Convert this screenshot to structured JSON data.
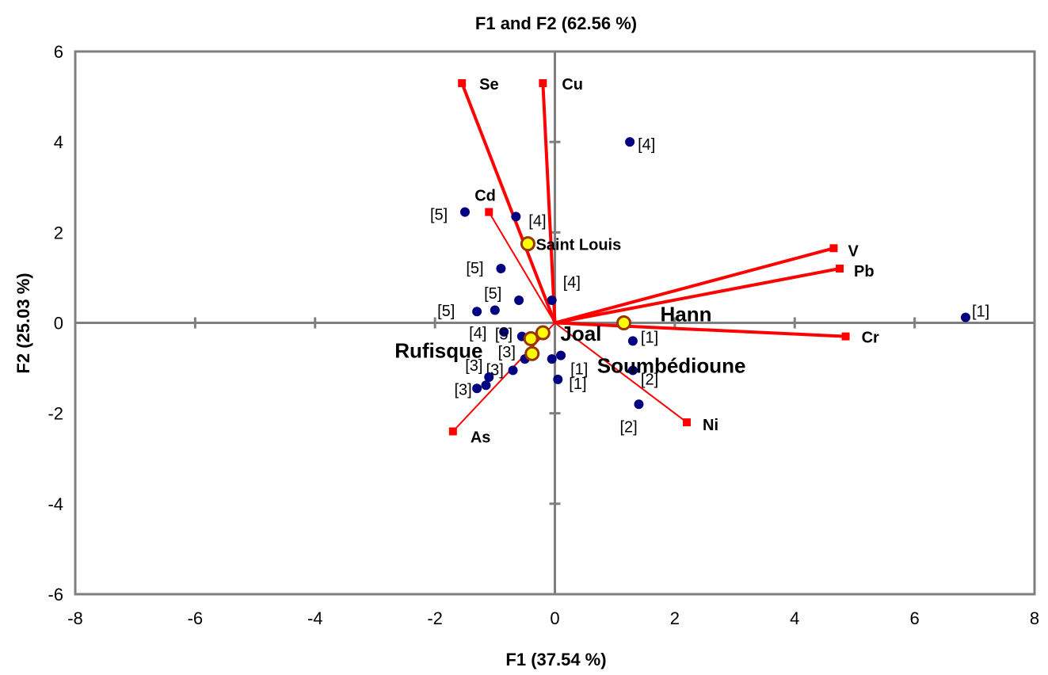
{
  "chart_data": {
    "type": "scatter",
    "title": "F1 and F2 (62.56 %)",
    "xlabel": "F1  (37.54 %)",
    "ylabel": "F2 (25.03 %)",
    "xlim": [
      -8,
      8
    ],
    "ylim": [
      -6,
      6
    ],
    "xticks": [
      -8,
      -6,
      -4,
      -2,
      0,
      2,
      4,
      6,
      8
    ],
    "yticks": [
      -6,
      -4,
      -2,
      0,
      2,
      4,
      6
    ],
    "grid": false,
    "colors": {
      "variables": "#ff0000",
      "observations": "#000080",
      "sites_fill": "#ffff00",
      "sites_edge": "#993300",
      "axes": "#7f7f7f"
    },
    "variables": [
      {
        "name": "Se",
        "x": -1.55,
        "y": 5.3
      },
      {
        "name": "Cu",
        "x": -0.2,
        "y": 5.3
      },
      {
        "name": "Cd",
        "x": -1.1,
        "y": 2.45
      },
      {
        "name": "V",
        "x": 4.65,
        "y": 1.65
      },
      {
        "name": "Pb",
        "x": 4.75,
        "y": 1.2
      },
      {
        "name": "Cr",
        "x": 4.85,
        "y": -0.3
      },
      {
        "name": "Ni",
        "x": 2.2,
        "y": -2.2
      },
      {
        "name": "As",
        "x": -1.7,
        "y": -2.4
      }
    ],
    "observations": [
      {
        "label": "[4]",
        "x": 1.25,
        "y": 4.0
      },
      {
        "label": "[5]",
        "x": -1.5,
        "y": 2.45
      },
      {
        "label": "[4]",
        "x": -0.65,
        "y": 2.35
      },
      {
        "label": "[5]",
        "x": -0.9,
        "y": 1.2
      },
      {
        "label": "[5]",
        "x": -0.6,
        "y": 0.5
      },
      {
        "label": "[4]",
        "x": -0.05,
        "y": 0.5
      },
      {
        "label": "[5]",
        "x": -1.3,
        "y": 0.25
      },
      {
        "label": "",
        "x": -1.0,
        "y": 0.28
      },
      {
        "label": "[4]",
        "x": -0.85,
        "y": -0.2
      },
      {
        "label": "[5]",
        "x": -0.55,
        "y": -0.3
      },
      {
        "label": "[1]",
        "x": 6.85,
        "y": 0.12
      },
      {
        "label": "[1]",
        "x": 1.3,
        "y": -0.4
      },
      {
        "label": "[1]",
        "x": 0.1,
        "y": -0.72
      },
      {
        "label": "",
        "x": -0.05,
        "y": -0.8
      },
      {
        "label": "[1]",
        "x": 0.05,
        "y": -1.25
      },
      {
        "label": "[2]",
        "x": 1.3,
        "y": -1.05
      },
      {
        "label": "[2]",
        "x": 1.4,
        "y": -1.8
      },
      {
        "label": "[3]",
        "x": -0.5,
        "y": -0.8
      },
      {
        "label": "[3]",
        "x": -0.7,
        "y": -1.05
      },
      {
        "label": "[3]",
        "x": -1.1,
        "y": -1.2
      },
      {
        "label": "[3]",
        "x": -1.15,
        "y": -1.38
      },
      {
        "label": "",
        "x": -1.3,
        "y": -1.45
      }
    ],
    "sites": [
      {
        "name": "Saint Louis",
        "x": -0.45,
        "y": 1.75
      },
      {
        "name": "Hann",
        "x": 1.15,
        "y": 0.0
      },
      {
        "name": "Joal",
        "x": -0.2,
        "y": -0.22
      },
      {
        "name": "Rufisque",
        "x": -0.4,
        "y": -0.35
      },
      {
        "name": "Soumbédioune",
        "x": -0.38,
        "y": -0.68
      }
    ]
  }
}
